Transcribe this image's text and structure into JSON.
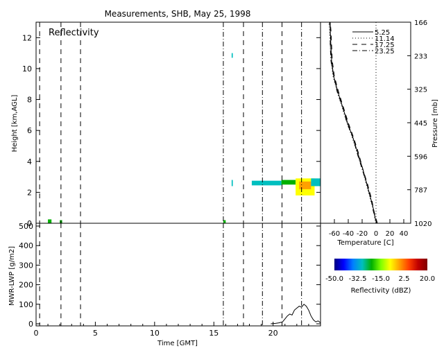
{
  "chart_data": [
    {
      "type": "heatmap",
      "title": "Measurements, SHB, May 25, 1998",
      "panel_label": "Reflectivity",
      "xlabel": "",
      "ylabel": "Height [km,AGL]",
      "xlim": [
        0,
        24
      ],
      "ylim": [
        0,
        13
      ],
      "y_ticks": [
        0,
        2,
        4,
        6,
        8,
        10,
        12
      ],
      "vertical_lines": [
        {
          "x": 0.3,
          "style": "dash"
        },
        {
          "x": 2.1,
          "style": "dash"
        },
        {
          "x": 3.75,
          "style": "dash"
        },
        {
          "x": 15.8,
          "style": "dashdot"
        },
        {
          "x": 17.5,
          "style": "dash"
        },
        {
          "x": 19.1,
          "style": "dashdot"
        },
        {
          "x": 20.75,
          "style": "dash"
        },
        {
          "x": 22.4,
          "style": "dashdot"
        }
      ],
      "echo_regions": [
        {
          "x": [
            1.0,
            1.3
          ],
          "y": [
            0.0,
            0.25
          ],
          "dbz": -20
        },
        {
          "x": [
            2.0,
            2.2
          ],
          "y": [
            0.0,
            0.2
          ],
          "dbz": -25
        },
        {
          "x": [
            15.8,
            16.0
          ],
          "y": [
            0.0,
            0.2
          ],
          "dbz": -25
        },
        {
          "x": [
            16.5,
            16.6
          ],
          "y": [
            10.7,
            11.0
          ],
          "dbz": -30
        },
        {
          "x": [
            16.5,
            16.6
          ],
          "y": [
            2.4,
            2.8
          ],
          "dbz": -30
        },
        {
          "x": [
            18.2,
            20.7
          ],
          "y": [
            2.45,
            2.75
          ],
          "dbz": -32
        },
        {
          "x": [
            20.7,
            21.9
          ],
          "y": [
            2.5,
            2.8
          ],
          "dbz": -25
        },
        {
          "x": [
            21.9,
            23.5
          ],
          "y": [
            1.8,
            2.9
          ],
          "dbz": -10
        },
        {
          "x": [
            22.2,
            23.2
          ],
          "y": [
            2.2,
            2.7
          ],
          "dbz": 0
        },
        {
          "x": [
            23.2,
            24.0
          ],
          "y": [
            2.4,
            2.9
          ],
          "dbz": -28
        }
      ],
      "colorbar": {
        "label": "Reflectivity (dBZ)",
        "range": [
          -50,
          20
        ],
        "tick_labels": [
          "-50.0",
          "-32.5",
          "-15.0",
          "2.5",
          "20.0"
        ],
        "colors": [
          "#00007f",
          "#0000ff",
          "#007fff",
          "#00bfbf",
          "#00b000",
          "#7fff00",
          "#ffff00",
          "#ffa000",
          "#ff4000",
          "#c00000",
          "#800000"
        ]
      }
    },
    {
      "type": "line",
      "xlabel": "Time [GMT]",
      "ylabel": "MWR-LWP [g/m2]",
      "xlim": [
        0,
        24
      ],
      "ylim": [
        0,
        500
      ],
      "x_ticks": [
        0,
        5,
        10,
        15,
        20
      ],
      "y_ticks": [
        0,
        100,
        200,
        300,
        400,
        500
      ],
      "y_tick_labels": [
        "0",
        "100",
        "200",
        "300",
        "400",
        "500"
      ],
      "x": [
        19.8,
        20.2,
        20.5,
        20.8,
        21.0,
        21.2,
        21.4,
        21.6,
        21.8,
        22.0,
        22.2,
        22.4,
        22.6,
        22.8,
        23.0,
        23.2,
        23.4,
        23.6,
        23.8,
        24.0
      ],
      "y": [
        0,
        2,
        5,
        10,
        25,
        40,
        50,
        45,
        70,
        80,
        90,
        85,
        100,
        90,
        70,
        40,
        20,
        10,
        15,
        5
      ]
    },
    {
      "type": "line",
      "xlabel": "Temperature [C]",
      "ylabel": "Pressure [mb]",
      "xlim": [
        -80,
        50
      ],
      "ylim": [
        1020,
        166
      ],
      "x_ticks": [
        -60,
        -40,
        -20,
        0,
        20,
        40
      ],
      "x_tick_labels": [
        "-60",
        "-40",
        "-20",
        "0",
        "20",
        "40"
      ],
      "pressure_ticks": [
        "166",
        "233",
        "325",
        "445",
        "596",
        "787",
        "1020"
      ],
      "legend": {
        "position": "top-right",
        "entries": [
          "5.25",
          "11.14",
          "17.25",
          "23.25"
        ]
      },
      "series": [
        {
          "name": "5.25",
          "style": "solid",
          "y_km": [
            0,
            0.3,
            0.8,
            1.5,
            2.5,
            3.5,
            4.5,
            5.5,
            6.5,
            7.5,
            8.5,
            9.5,
            10.5,
            11.5,
            12.5,
            13
          ],
          "x": [
            1,
            -1,
            -3,
            -7,
            -13,
            -19,
            -26,
            -33,
            -41,
            -48,
            -55,
            -61,
            -64,
            -65,
            -66,
            -66
          ]
        },
        {
          "name": "11.14",
          "style": "dot",
          "y_km": [
            0,
            0.3,
            0.8,
            1.5,
            2.5,
            3.5,
            4.5,
            5.5,
            6.5,
            7.5,
            8.5,
            9.5,
            10.5,
            11.5,
            12.5,
            13
          ],
          "x": [
            0,
            -2,
            -3,
            -8,
            -14,
            -20,
            -27,
            -34,
            -42,
            -49,
            -56,
            -62,
            -65,
            -66,
            -67,
            -68
          ]
        },
        {
          "name": "17.25",
          "style": "dash",
          "y_km": [
            0,
            0.3,
            0.8,
            1.5,
            2.5,
            3.5,
            4.5,
            5.5,
            6.5,
            7.5,
            8.5,
            9.5,
            10.5,
            11.5,
            12.5,
            13
          ],
          "x": [
            2,
            0,
            -3,
            -6,
            -12,
            -19,
            -25,
            -32,
            -40,
            -47,
            -54,
            -60,
            -63,
            -64,
            -65,
            -66
          ]
        },
        {
          "name": "23.25",
          "style": "dashdot",
          "y_km": [
            0,
            0.3,
            0.8,
            1.5,
            2.5,
            3.5,
            4.5,
            5.5,
            6.5,
            7.5,
            8.5,
            9.5,
            10.5,
            11.5,
            12.5,
            13
          ],
          "x": [
            1,
            -1,
            -4,
            -7,
            -13,
            -20,
            -27,
            -33,
            -42,
            -48,
            -56,
            -61,
            -65,
            -66,
            -66,
            -67
          ]
        }
      ],
      "zero_line_x": 0
    }
  ]
}
